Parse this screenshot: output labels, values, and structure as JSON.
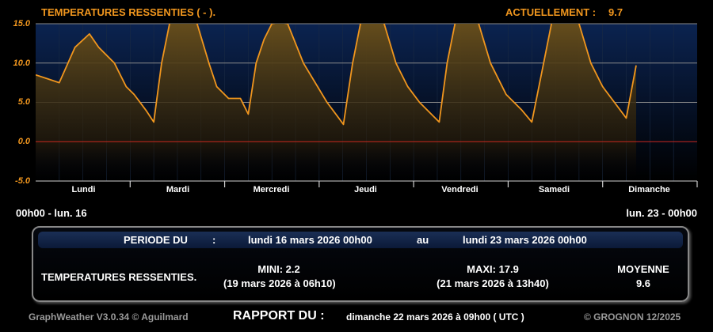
{
  "header": {
    "title": "TEMPERATURES RESSENTIES ( - ).",
    "current_label": "ACTUELLEMENT :",
    "current_value": "9.7"
  },
  "chart_data": {
    "type": "area",
    "title": "TEMPERATURES RESSENTIES ( - ).",
    "ylim": [
      -5.0,
      15.0
    ],
    "yticks": [
      "15.0",
      "10.0",
      "5.0",
      "0.0",
      "-5.0"
    ],
    "ytick_values": [
      15,
      10,
      5,
      0,
      -5
    ],
    "x_start": "2026-03-16T00:00",
    "x_end": "2026-03-23T00:00",
    "x_tick_labels": [
      "Lundi",
      "Mardi",
      "Mercredi",
      "Jeudi",
      "Vendredi",
      "Samedi",
      "Dimanche"
    ],
    "grid": true,
    "zero_line_color": "#c8281e",
    "line_color": "#f0961e",
    "series": [
      {
        "points": [
          [
            "2026-03-16T00:00",
            8.5
          ],
          [
            "2026-03-16T03:00",
            8.0
          ],
          [
            "2026-03-16T06:00",
            7.5
          ],
          [
            "2026-03-16T10:00",
            12.0
          ],
          [
            "2026-03-16T13:40",
            13.7
          ],
          [
            "2026-03-16T16:00",
            12.0
          ],
          [
            "2026-03-16T20:00",
            10.0
          ],
          [
            "2026-03-16T23:00",
            7.0
          ],
          [
            "2026-03-17T01:00",
            6.0
          ],
          [
            "2026-03-17T04:00",
            4.0
          ],
          [
            "2026-03-17T06:00",
            2.5
          ],
          [
            "2026-03-17T08:00",
            10.0
          ],
          [
            "2026-03-17T10:00",
            15.0
          ],
          [
            "2026-03-17T13:00",
            16.5
          ],
          [
            "2026-03-17T17:00",
            15.0
          ],
          [
            "2026-03-17T20:00",
            10.0
          ],
          [
            "2026-03-17T22:00",
            7.0
          ],
          [
            "2026-03-18T01:00",
            5.5
          ],
          [
            "2026-03-18T04:00",
            5.5
          ],
          [
            "2026-03-18T06:00",
            3.5
          ],
          [
            "2026-03-18T08:00",
            10.0
          ],
          [
            "2026-03-18T10:00",
            13.0
          ],
          [
            "2026-03-18T12:00",
            15.0
          ],
          [
            "2026-03-18T14:00",
            15.2
          ],
          [
            "2026-03-18T16:00",
            15.0
          ],
          [
            "2026-03-18T20:00",
            10.0
          ],
          [
            "2026-03-18T23:00",
            7.5
          ],
          [
            "2026-03-19T02:00",
            5.0
          ],
          [
            "2026-03-19T05:00",
            3.0
          ],
          [
            "2026-03-19T06:10",
            2.2
          ],
          [
            "2026-03-19T08:30",
            10.0
          ],
          [
            "2026-03-19T10:30",
            15.0
          ],
          [
            "2026-03-19T13:30",
            16.5
          ],
          [
            "2026-03-19T16:30",
            15.0
          ],
          [
            "2026-03-19T19:30",
            10.0
          ],
          [
            "2026-03-19T22:30",
            7.0
          ],
          [
            "2026-03-20T01:30",
            5.0
          ],
          [
            "2026-03-20T06:30",
            2.5
          ],
          [
            "2026-03-20T08:30",
            10.0
          ],
          [
            "2026-03-20T10:30",
            15.0
          ],
          [
            "2026-03-20T13:30",
            16.8
          ],
          [
            "2026-03-20T16:30",
            15.0
          ],
          [
            "2026-03-20T19:30",
            10.0
          ],
          [
            "2026-03-20T23:30",
            6.0
          ],
          [
            "2026-03-21T03:30",
            4.0
          ],
          [
            "2026-03-21T06:00",
            2.5
          ],
          [
            "2026-03-21T09:00",
            10.0
          ],
          [
            "2026-03-21T11:00",
            15.0
          ],
          [
            "2026-03-21T13:40",
            17.9
          ],
          [
            "2026-03-21T18:00",
            15.0
          ],
          [
            "2026-03-21T21:00",
            10.0
          ],
          [
            "2026-03-22T00:00",
            7.0
          ],
          [
            "2026-03-22T03:00",
            5.0
          ],
          [
            "2026-03-22T06:00",
            3.0
          ],
          [
            "2026-03-22T08:30",
            9.7
          ]
        ]
      }
    ]
  },
  "range": {
    "start": "00h00 - lun. 16",
    "end": "lun. 23 - 00h00"
  },
  "summary": {
    "period_label": "PERIODE DU",
    "colon": ":",
    "period_start": "lundi 16 mars 2026 00h00",
    "au": "au",
    "period_end": "lundi 23 mars 2026 00h00",
    "row_label": "TEMPERATURES RESSENTIES.",
    "mini": "MINI:  2.2",
    "mini_date": "(19 mars 2026 à 06h10)",
    "maxi": "MAXI:  17.9",
    "maxi_date": "(21 mars 2026 à 13h40)",
    "moyenne_label": "MOYENNE",
    "moyenne_value": "9.6"
  },
  "footer": {
    "app": "GraphWeather V3.0.34 © Aguilmard",
    "report_label": "RAPPORT DU :",
    "report_date": "dimanche 22 mars 2026 à 09h00 ( UTC )",
    "copyright": "© GROGNON 12/2025"
  }
}
